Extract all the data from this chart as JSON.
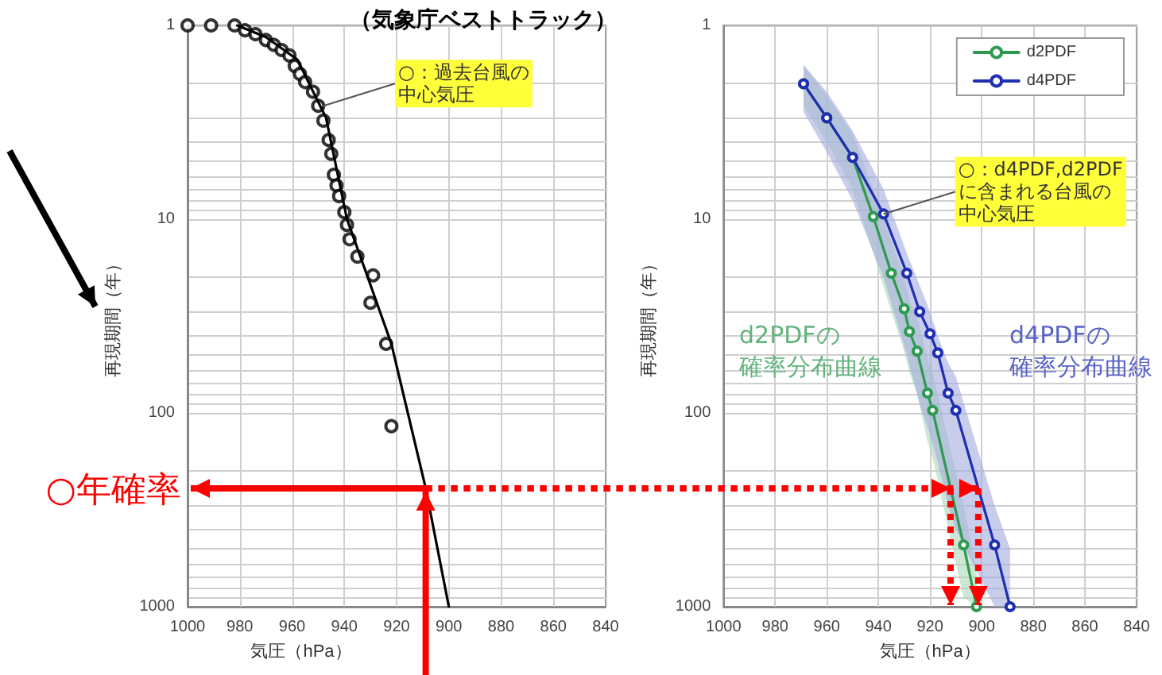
{
  "chart_data": [
    {
      "type": "scatter",
      "title": "（気象庁ベストトラック）",
      "xlabel": "気圧（hPa）",
      "ylabel": "再現期間（年）",
      "log": "y",
      "grid": true,
      "legend": false,
      "marker": "circle",
      "xlim": [
        1000,
        840
      ],
      "xticks": [
        1000,
        980,
        960,
        940,
        920,
        900,
        880,
        860,
        840
      ],
      "ylim": [
        1000,
        1
      ],
      "yticks": [
        1,
        {
          "value": 2,
          "label": null
        },
        {
          "value": 3,
          "label": null
        },
        {
          "value": 4,
          "label": null
        },
        {
          "value": 5,
          "label": null
        },
        {
          "value": 6,
          "label": null
        },
        {
          "value": 7,
          "label": null
        },
        {
          "value": 8,
          "label": null
        },
        {
          "value": 9,
          "label": null
        },
        10,
        {
          "value": 20,
          "label": null
        },
        {
          "value": 30,
          "label": null
        },
        {
          "value": 40,
          "label": null
        },
        {
          "value": 50,
          "label": null
        },
        {
          "value": 60,
          "label": null
        },
        {
          "value": 70,
          "label": null
        },
        {
          "value": 80,
          "label": null
        },
        {
          "value": 90,
          "label": null
        },
        100,
        {
          "value": 200,
          "label": null
        },
        {
          "value": 300,
          "label": null
        },
        {
          "value": 400,
          "label": null
        },
        {
          "value": 500,
          "label": null
        },
        {
          "value": 600,
          "label": null
        },
        {
          "value": 700,
          "label": null
        },
        {
          "value": 800,
          "label": null
        },
        {
          "value": 900,
          "label": null
        },
        1000
      ],
      "series": [
        {
          "color": "#000000",
          "x": [
            1000,
            991,
            982,
            978,
            974,
            970,
            967,
            964,
            961,
            959,
            957,
            955,
            952,
            950,
            948,
            946,
            945,
            944,
            943,
            942,
            940,
            939,
            938,
            935,
            929,
            930,
            924,
            922
          ],
          "values": [
            1,
            1,
            1,
            1.06,
            1.11,
            1.19,
            1.26,
            1.34,
            1.43,
            1.62,
            1.78,
            1.96,
            2.2,
            2.6,
            3.1,
            3.9,
            4.6,
            5.9,
            6.7,
            7.6,
            9.2,
            10.7,
            12.7,
            15.6,
            19.5,
            27,
            44,
            117
          ]
        },
        {
          "type": "line",
          "color": "#000000",
          "marker": "none",
          "x": [
            981,
            970,
            958,
            947,
            939,
            931,
            922,
            909,
            900
          ],
          "values": [
            1,
            1.15,
            1.5,
            3,
            10,
            20,
            44,
            240,
            1000
          ]
        }
      ],
      "annotations": [
        {
          "text": "○：過去台風の中心気圧",
          "x": 948,
          "y": 2.6
        }
      ],
      "ref_lines": [
        {
          "axis": "y",
          "value": 245,
          "label": "○年確率",
          "color": "#ff0000",
          "line_style": "solid"
        }
      ]
    },
    {
      "type": "line",
      "xlabel": "気圧（hPa）",
      "ylabel": "再現期間（年）",
      "log": "y",
      "grid": true,
      "legend": "top right",
      "marker": "circle",
      "xlim": [
        1000,
        840
      ],
      "xticks": [
        1000,
        980,
        960,
        940,
        920,
        900,
        880,
        860,
        840
      ],
      "ylim": [
        1000,
        1
      ],
      "yticks": [
        1,
        {
          "value": 2,
          "label": null
        },
        {
          "value": 3,
          "label": null
        },
        {
          "value": 4,
          "label": null
        },
        {
          "value": 5,
          "label": null
        },
        {
          "value": 6,
          "label": null
        },
        {
          "value": 7,
          "label": null
        },
        {
          "value": 8,
          "label": null
        },
        {
          "value": 9,
          "label": null
        },
        10,
        {
          "value": 20,
          "label": null
        },
        {
          "value": 30,
          "label": null
        },
        {
          "value": 40,
          "label": null
        },
        {
          "value": 50,
          "label": null
        },
        {
          "value": 60,
          "label": null
        },
        {
          "value": 70,
          "label": null
        },
        {
          "value": 80,
          "label": null
        },
        {
          "value": 90,
          "label": null
        },
        100,
        {
          "value": 200,
          "label": null
        },
        {
          "value": 300,
          "label": null
        },
        {
          "value": 400,
          "label": null
        },
        {
          "value": 500,
          "label": null
        },
        {
          "value": 600,
          "label": null
        },
        {
          "value": 700,
          "label": null
        },
        {
          "value": 800,
          "label": null
        },
        {
          "value": 900,
          "label": null
        },
        1000
      ],
      "series": [
        {
          "name": "d2PDF",
          "color": "#2e9a50",
          "x": [
            969,
            960,
            950,
            942,
            935,
            930,
            928,
            925,
            921,
            919,
            907,
            902
          ],
          "values": [
            2,
            3,
            4.8,
            9.7,
            19,
            29,
            38,
            48,
            79,
            97,
            480,
            1000
          ],
          "lower": [
            1.6,
            2.3,
            3.6,
            7,
            13,
            20,
            26,
            32,
            52,
            62,
            300,
            650
          ],
          "upper": [
            2.6,
            4,
            7,
            15,
            30,
            48,
            62,
            80,
            140,
            170,
            900,
            1000
          ]
        },
        {
          "name": "d4PDF",
          "color": "#1f2fb0",
          "x": [
            969,
            960,
            950,
            938,
            929,
            924,
            920,
            917,
            913,
            910,
            895,
            889
          ],
          "values": [
            2,
            3,
            4.8,
            9.4,
            19,
            30,
            39,
            49,
            79,
            97,
            480,
            1000
          ],
          "lower": [
            1.6,
            2.2,
            3.5,
            7,
            15,
            22,
            30,
            40,
            55,
            65,
            300,
            500
          ],
          "upper": [
            2.8,
            4.5,
            8,
            20,
            50,
            90,
            130,
            180,
            300,
            400,
            1000,
            1000
          ]
        }
      ],
      "annotations": [
        {
          "text": "○：d4PDF,d2PDFに含まれる台風の中心気圧",
          "x": 938,
          "y": 9.4
        },
        "d2PDFの",
        "確率分布曲線",
        "d4PDFの",
        "確率分布曲線"
      ],
      "ref_lines": [
        {
          "axis": "y",
          "value": 245,
          "color": "#ff0000",
          "line_style": "dotted"
        }
      ]
    }
  ]
}
